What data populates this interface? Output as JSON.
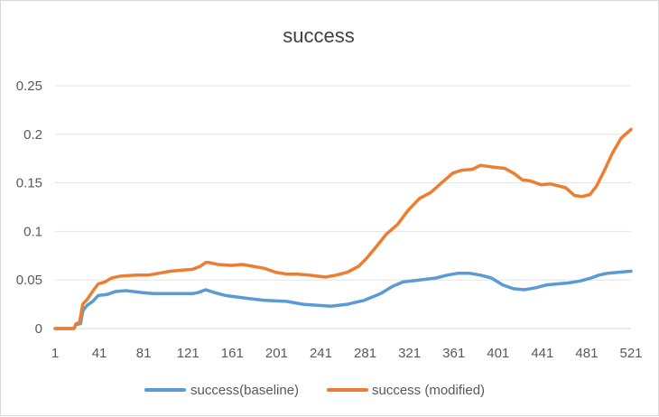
{
  "chart_data": {
    "type": "line",
    "title": "success",
    "xlabel": "",
    "ylabel": "",
    "xlim": [
      1,
      521
    ],
    "ylim": [
      0,
      0.25
    ],
    "x_ticks": [
      "1",
      "41",
      "81",
      "121",
      "161",
      "201",
      "241",
      "281",
      "321",
      "361",
      "401",
      "441",
      "481",
      "521"
    ],
    "y_ticks": [
      "0",
      "0.05",
      "0.1",
      "0.15",
      "0.2",
      "0.25"
    ],
    "grid": true,
    "legend_position": "bottom",
    "series": [
      {
        "name": "success(baseline)",
        "color": "#5b9bd5",
        "points": [
          [
            1,
            0
          ],
          [
            18,
            0
          ],
          [
            20,
            0.004
          ],
          [
            24,
            0.005
          ],
          [
            26,
            0.018
          ],
          [
            30,
            0.024
          ],
          [
            35,
            0.028
          ],
          [
            40,
            0.034
          ],
          [
            48,
            0.035
          ],
          [
            55,
            0.038
          ],
          [
            65,
            0.039
          ],
          [
            80,
            0.037
          ],
          [
            90,
            0.036
          ],
          [
            110,
            0.036
          ],
          [
            125,
            0.036
          ],
          [
            130,
            0.037
          ],
          [
            137,
            0.04
          ],
          [
            145,
            0.037
          ],
          [
            155,
            0.034
          ],
          [
            175,
            0.031
          ],
          [
            190,
            0.029
          ],
          [
            210,
            0.028
          ],
          [
            225,
            0.025
          ],
          [
            250,
            0.023
          ],
          [
            265,
            0.025
          ],
          [
            280,
            0.029
          ],
          [
            295,
            0.036
          ],
          [
            305,
            0.043
          ],
          [
            315,
            0.048
          ],
          [
            330,
            0.05
          ],
          [
            345,
            0.052
          ],
          [
            355,
            0.055
          ],
          [
            365,
            0.057
          ],
          [
            375,
            0.057
          ],
          [
            385,
            0.055
          ],
          [
            395,
            0.052
          ],
          [
            405,
            0.045
          ],
          [
            415,
            0.041
          ],
          [
            425,
            0.04
          ],
          [
            435,
            0.042
          ],
          [
            445,
            0.045
          ],
          [
            455,
            0.046
          ],
          [
            465,
            0.047
          ],
          [
            475,
            0.049
          ],
          [
            485,
            0.052
          ],
          [
            492,
            0.055
          ],
          [
            500,
            0.057
          ],
          [
            510,
            0.058
          ],
          [
            521,
            0.059
          ]
        ]
      },
      {
        "name": "success (modified)",
        "color": "#ed7d31",
        "points": [
          [
            1,
            0
          ],
          [
            18,
            0
          ],
          [
            20,
            0.005
          ],
          [
            23,
            0.006
          ],
          [
            26,
            0.025
          ],
          [
            30,
            0.03
          ],
          [
            36,
            0.04
          ],
          [
            40,
            0.046
          ],
          [
            46,
            0.048
          ],
          [
            52,
            0.052
          ],
          [
            60,
            0.054
          ],
          [
            75,
            0.055
          ],
          [
            85,
            0.055
          ],
          [
            95,
            0.057
          ],
          [
            105,
            0.059
          ],
          [
            115,
            0.06
          ],
          [
            125,
            0.061
          ],
          [
            132,
            0.064
          ],
          [
            137,
            0.068
          ],
          [
            140,
            0.068
          ],
          [
            148,
            0.066
          ],
          [
            160,
            0.065
          ],
          [
            170,
            0.066
          ],
          [
            180,
            0.064
          ],
          [
            190,
            0.062
          ],
          [
            200,
            0.058
          ],
          [
            210,
            0.056
          ],
          [
            220,
            0.056
          ],
          [
            230,
            0.055
          ],
          [
            245,
            0.053
          ],
          [
            255,
            0.055
          ],
          [
            265,
            0.058
          ],
          [
            275,
            0.064
          ],
          [
            282,
            0.072
          ],
          [
            290,
            0.083
          ],
          [
            300,
            0.097
          ],
          [
            310,
            0.107
          ],
          [
            320,
            0.122
          ],
          [
            330,
            0.134
          ],
          [
            340,
            0.14
          ],
          [
            350,
            0.15
          ],
          [
            360,
            0.16
          ],
          [
            368,
            0.163
          ],
          [
            378,
            0.164
          ],
          [
            385,
            0.168
          ],
          [
            398,
            0.166
          ],
          [
            407,
            0.165
          ],
          [
            415,
            0.16
          ],
          [
            423,
            0.153
          ],
          [
            430,
            0.152
          ],
          [
            440,
            0.148
          ],
          [
            448,
            0.149
          ],
          [
            455,
            0.147
          ],
          [
            462,
            0.145
          ],
          [
            470,
            0.137
          ],
          [
            477,
            0.136
          ],
          [
            484,
            0.138
          ],
          [
            490,
            0.147
          ],
          [
            497,
            0.163
          ],
          [
            504,
            0.18
          ],
          [
            512,
            0.196
          ],
          [
            521,
            0.205
          ]
        ]
      }
    ]
  }
}
